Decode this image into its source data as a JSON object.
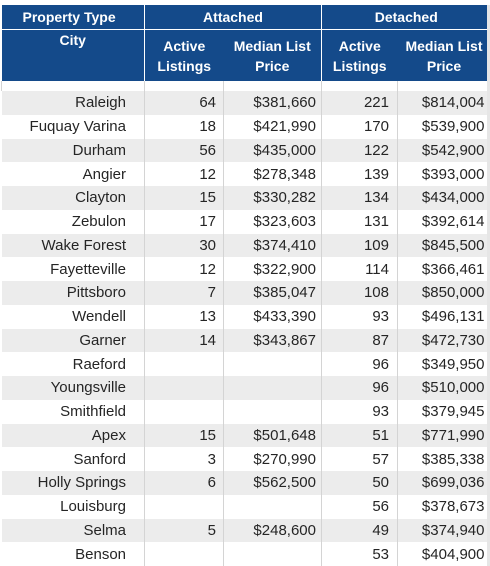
{
  "headers": {
    "property_type": "Property Type",
    "attached": "Attached",
    "detached": "Detached",
    "city": "City",
    "active_listings": "Active Listings",
    "median_list_price": "Median List Price"
  },
  "rows": [
    {
      "city": "Raleigh",
      "att_active": "64",
      "att_price": "$381,660",
      "det_active": "221",
      "det_price": "$814,004"
    },
    {
      "city": "Fuquay Varina",
      "att_active": "18",
      "att_price": "$421,990",
      "det_active": "170",
      "det_price": "$539,900"
    },
    {
      "city": "Durham",
      "att_active": "56",
      "att_price": "$435,000",
      "det_active": "122",
      "det_price": "$542,900"
    },
    {
      "city": "Angier",
      "att_active": "12",
      "att_price": "$278,348",
      "det_active": "139",
      "det_price": "$393,000"
    },
    {
      "city": "Clayton",
      "att_active": "15",
      "att_price": "$330,282",
      "det_active": "134",
      "det_price": "$434,000"
    },
    {
      "city": "Zebulon",
      "att_active": "17",
      "att_price": "$323,603",
      "det_active": "131",
      "det_price": "$392,614"
    },
    {
      "city": "Wake Forest",
      "att_active": "30",
      "att_price": "$374,410",
      "det_active": "109",
      "det_price": "$845,500"
    },
    {
      "city": "Fayetteville",
      "att_active": "12",
      "att_price": "$322,900",
      "det_active": "114",
      "det_price": "$366,461"
    },
    {
      "city": "Pittsboro",
      "att_active": "7",
      "att_price": "$385,047",
      "det_active": "108",
      "det_price": "$850,000"
    },
    {
      "city": "Wendell",
      "att_active": "13",
      "att_price": "$433,390",
      "det_active": "93",
      "det_price": "$496,131"
    },
    {
      "city": "Garner",
      "att_active": "14",
      "att_price": "$343,867",
      "det_active": "87",
      "det_price": "$472,730"
    },
    {
      "city": "Raeford",
      "att_active": "",
      "att_price": "",
      "det_active": "96",
      "det_price": "$349,950"
    },
    {
      "city": "Youngsville",
      "att_active": "",
      "att_price": "",
      "det_active": "96",
      "det_price": "$510,000"
    },
    {
      "city": "Smithfield",
      "att_active": "",
      "att_price": "",
      "det_active": "93",
      "det_price": "$379,945"
    },
    {
      "city": "Apex",
      "att_active": "15",
      "att_price": "$501,648",
      "det_active": "51",
      "det_price": "$771,990"
    },
    {
      "city": "Sanford",
      "att_active": "3",
      "att_price": "$270,990",
      "det_active": "57",
      "det_price": "$385,338"
    },
    {
      "city": "Holly Springs",
      "att_active": "6",
      "att_price": "$562,500",
      "det_active": "50",
      "det_price": "$699,036"
    },
    {
      "city": "Louisburg",
      "att_active": "",
      "att_price": "",
      "det_active": "56",
      "det_price": "$378,673"
    },
    {
      "city": "Selma",
      "att_active": "5",
      "att_price": "$248,600",
      "det_active": "49",
      "det_price": "$374,940"
    },
    {
      "city": "Benson",
      "att_active": "",
      "att_price": "",
      "det_active": "53",
      "det_price": "$404,900"
    }
  ]
}
